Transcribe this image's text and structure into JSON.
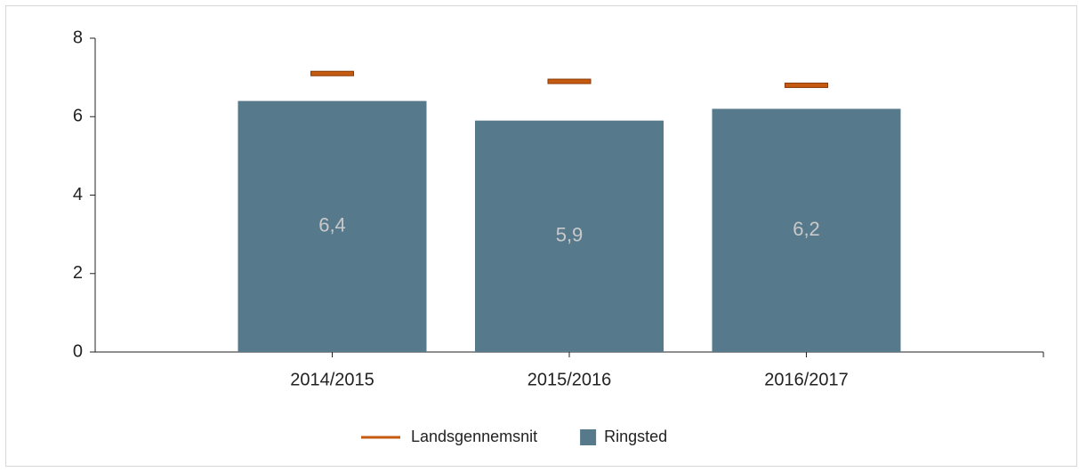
{
  "chart_data": {
    "type": "bar",
    "categories": [
      "2014/2015",
      "2015/2016",
      "2016/2017"
    ],
    "series": [
      {
        "name": "Landsgennemsnit",
        "type": "marker",
        "color": "#c55a11",
        "values": [
          7.1,
          6.9,
          6.8
        ]
      },
      {
        "name": "Ringsted",
        "type": "bar",
        "color": "#56798c",
        "values": [
          6.4,
          5.9,
          6.2
        ],
        "value_labels": [
          "6,4",
          "5,9",
          "6,2"
        ]
      }
    ],
    "ylim": [
      0,
      8
    ],
    "yticks": [
      0,
      2,
      4,
      6,
      8
    ],
    "grid": false,
    "legend": "bottom"
  }
}
